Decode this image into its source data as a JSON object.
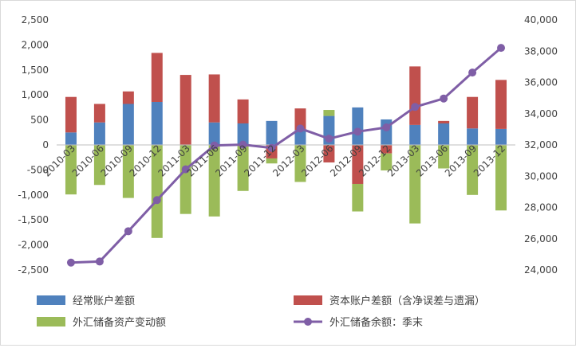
{
  "chart_data": {
    "type": "bar",
    "categories": [
      "2010-03",
      "2010-06",
      "2010-09",
      "2010-12",
      "2011-03",
      "2011-06",
      "2011-09",
      "2011-12",
      "2012-03",
      "2012-06",
      "2012-09",
      "2012-12",
      "2013-03",
      "2013-06",
      "2013-09",
      "2013-12"
    ],
    "series": [
      {
        "name": "经常账户差额",
        "color": "#4f81bd",
        "axis": "left",
        "values": [
          250,
          450,
          820,
          860,
          0,
          450,
          430,
          480,
          300,
          580,
          750,
          510,
          400,
          430,
          330,
          320
        ]
      },
      {
        "name": "资本账户差额（含净误差与遗漏）",
        "color": "#c0504d",
        "axis": "left",
        "values": [
          710,
          370,
          250,
          980,
          1400,
          960,
          480,
          -270,
          430,
          -350,
          -780,
          -170,
          1170,
          50,
          630,
          980
        ]
      },
      {
        "name": "外汇储备资产变动额",
        "color": "#9bbb59",
        "axis": "left",
        "values": [
          -990,
          -800,
          -1060,
          -1860,
          -1380,
          -1430,
          -920,
          -100,
          -740,
          120,
          -550,
          -340,
          -1570,
          -470,
          -1000,
          -1310
        ]
      },
      {
        "name": "外汇储备余额：季末",
        "color": "#7f5ea6",
        "axis": "right",
        "type": "line",
        "values": [
          24470,
          24540,
          26480,
          28470,
          30440,
          31970,
          32020,
          31810,
          33050,
          32400,
          32850,
          33120,
          34430,
          34970,
          36630,
          38210
        ]
      }
    ],
    "y_left": {
      "min": -2500,
      "max": 2500,
      "step": 500,
      "ticks": [
        "2,500",
        "2,000",
        "1,500",
        "1,000",
        "500",
        "0",
        "-500",
        "-1,000",
        "-1,500",
        "-2,000",
        "-2,500"
      ]
    },
    "y_right": {
      "min": 24000,
      "max": 40000,
      "step": 2000,
      "ticks": [
        "40,000",
        "38,000",
        "36,000",
        "34,000",
        "32,000",
        "30,000",
        "28,000",
        "26,000",
        "24,000"
      ]
    },
    "title": "",
    "grid": false,
    "legend_position": "bottom"
  }
}
